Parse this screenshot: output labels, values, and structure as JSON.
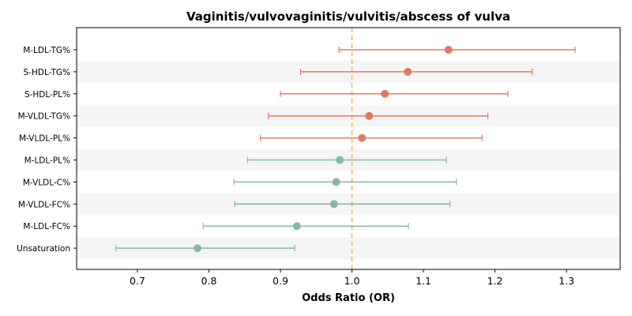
{
  "chart_data": {
    "type": "forest",
    "title": "Vaginitis/vulvovaginitis/vulvitis/abscess of vulva",
    "xlabel": "Odds Ratio (OR)",
    "ylabel": "",
    "xlim": [
      0.615,
      1.375
    ],
    "xticks": [
      "0.7",
      "0.8",
      "0.9",
      "1.0",
      "1.1",
      "1.2",
      "1.3"
    ],
    "reference_line": 1.0,
    "reference_color": "#f4c27f",
    "colors": {
      "positive": "#e07b5f",
      "negative": "#85b8a0",
      "band": "#f5f5f5"
    },
    "rows": [
      {
        "label": "M-LDL-TG%",
        "or": 1.135,
        "lower": 0.982,
        "upper": 1.312,
        "group": "positive"
      },
      {
        "label": "S-HDL-TG%",
        "or": 1.078,
        "lower": 0.928,
        "upper": 1.252,
        "group": "positive"
      },
      {
        "label": "S-HDL-PL%",
        "or": 1.046,
        "lower": 0.9,
        "upper": 1.218,
        "group": "positive"
      },
      {
        "label": "M-VLDL-TG%",
        "or": 1.024,
        "lower": 0.883,
        "upper": 1.19,
        "group": "positive"
      },
      {
        "label": "M-VLDL-PL%",
        "or": 1.014,
        "lower": 0.872,
        "upper": 1.182,
        "group": "positive"
      },
      {
        "label": "M-LDL-PL%",
        "or": 0.983,
        "lower": 0.854,
        "upper": 1.132,
        "group": "negative"
      },
      {
        "label": "M-VLDL-C%",
        "or": 0.978,
        "lower": 0.835,
        "upper": 1.146,
        "group": "negative"
      },
      {
        "label": "M-VLDL-FC%",
        "or": 0.975,
        "lower": 0.836,
        "upper": 1.137,
        "group": "negative"
      },
      {
        "label": "M-LDL-FC%",
        "or": 0.923,
        "lower": 0.792,
        "upper": 1.079,
        "group": "negative"
      },
      {
        "label": "Unsaturation",
        "or": 0.784,
        "lower": 0.67,
        "upper": 0.92,
        "group": "negative"
      }
    ]
  }
}
